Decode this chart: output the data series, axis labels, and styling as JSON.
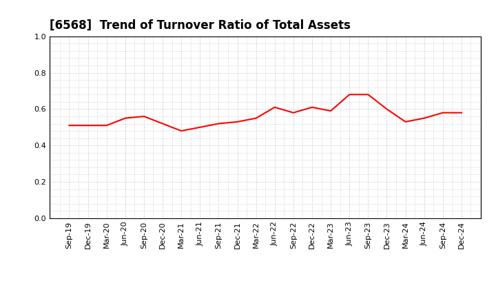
{
  "title": "[6568]  Trend of Turnover Ratio of Total Assets",
  "labels": [
    "Sep-19",
    "Dec-19",
    "Mar-20",
    "Jun-20",
    "Sep-20",
    "Dec-20",
    "Mar-21",
    "Jun-21",
    "Sep-21",
    "Dec-21",
    "Mar-22",
    "Jun-22",
    "Sep-22",
    "Dec-22",
    "Mar-23",
    "Jun-23",
    "Sep-23",
    "Dec-23",
    "Mar-24",
    "Jun-24",
    "Sep-24",
    "Dec-24"
  ],
  "values": [
    0.51,
    0.51,
    0.51,
    0.55,
    0.56,
    0.52,
    0.48,
    0.5,
    0.52,
    0.53,
    0.55,
    0.61,
    0.58,
    0.61,
    0.59,
    0.68,
    0.68,
    0.6,
    0.53,
    0.55,
    0.58,
    0.58
  ],
  "line_color": "#ff0000",
  "line_width": 1.5,
  "ylim": [
    0.0,
    1.0
  ],
  "yticks": [
    0.0,
    0.2,
    0.4,
    0.6,
    0.8,
    1.0
  ],
  "grid_color": "#bbbbbb",
  "bg_color": "#ffffff",
  "title_fontsize": 12,
  "tick_fontsize": 8
}
